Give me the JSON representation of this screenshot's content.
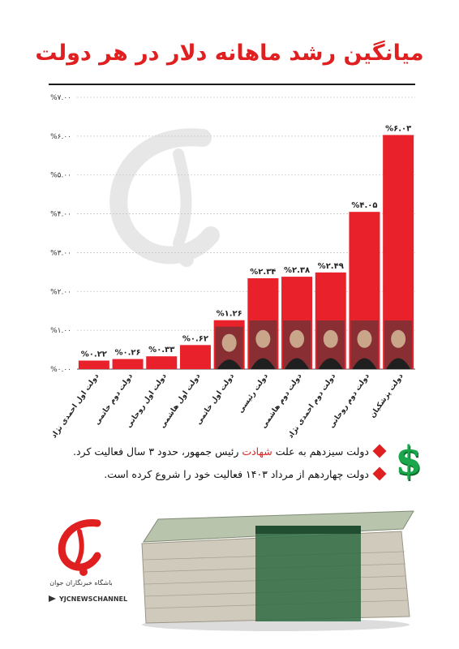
{
  "title": "میانگین رشد ماهانه دلار در هر دولت",
  "chart_data": {
    "type": "bar",
    "categories": [
      "دولت اول احمدی نژاد",
      "دولت دوم خاتمی",
      "دولت اول روحانی",
      "دولت اول هاشمی",
      "دولت اول خاتمی",
      "دولت رئیسی",
      "دولت دوم هاشمی",
      "دولت دوم احمدی نژاد",
      "دولت دوم روحانی",
      "دولت پزشکیان"
    ],
    "values": [
      0.22,
      0.26,
      0.33,
      0.62,
      1.26,
      2.34,
      2.38,
      2.49,
      4.05,
      6.03
    ],
    "value_labels": [
      "%۰.۲۲",
      "%۰.۲۶",
      "%۰.۳۳",
      "%۰.۶۲",
      "%۱.۲۶",
      "%۲.۳۴",
      "%۲.۳۸",
      "%۲.۴۹",
      "%۴.۰۵",
      "%۶.۰۳"
    ],
    "ylim": [
      0,
      7
    ],
    "yticks": [
      0,
      1,
      2,
      3,
      4,
      5,
      6,
      7
    ],
    "ytick_labels": [
      "%۰.۰۰",
      "%۱.۰۰",
      "%۲.۰۰",
      "%۳.۰۰",
      "%۴.۰۰",
      "%۵.۰۰",
      "%۶.۰۰",
      "%۷.۰۰"
    ],
    "bar_color": "#e8212b",
    "grid": true,
    "legend": "none"
  },
  "notes": [
    {
      "before": "دولت سیزدهم به علت ",
      "highlight": "شهادت",
      "after": " رئیس جمهور، حدود ۳ سال فعالیت کرد."
    },
    {
      "before": "دولت چهاردهم از مرداد ۱۴۰۳ فعالیت خود را شروع کرده است.",
      "highlight": "",
      "after": ""
    }
  ],
  "footer": {
    "agency": "باشگاه خبرنگاران جوان",
    "channel": "YJCNEWSCHANNEL"
  },
  "colors": {
    "accent": "#e02020",
    "dollar": "#1aa64a"
  },
  "icons": {
    "dollar": "$"
  }
}
